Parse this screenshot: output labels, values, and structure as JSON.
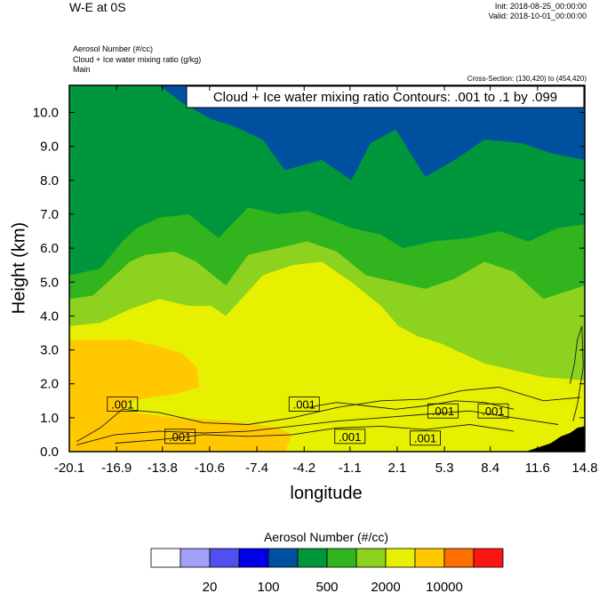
{
  "header": {
    "title": "W-E at 0S",
    "init": "Init: 2018-08-25_00:00:00",
    "valid": "Valid: 2018-10-01_00:00:00",
    "field1": "Aerosol Number   (#/cc)",
    "field2": "Cloud + Ice water mixing ratio   (g/kg)",
    "field3": "Main",
    "cross_section": "Cross-Section: (130,420) to (454,420)"
  },
  "chart_data": {
    "type": "heatmap",
    "title": "W-E at 0S",
    "xlabel": "longitude",
    "ylabel": "Height (km)",
    "xlim": [
      -20.1,
      14.8
    ],
    "ylim": [
      0.0,
      10.8
    ],
    "x_ticks": [
      "-20.1",
      "-16.9",
      "-13.8",
      "-10.6",
      "-7.4",
      "-4.2",
      "-1.1",
      "2.1",
      "5.3",
      "8.4",
      "11.6",
      "14.8"
    ],
    "y_ticks": [
      "0.0",
      "1.0",
      "2.0",
      "3.0",
      "4.0",
      "5.0",
      "6.0",
      "7.0",
      "8.0",
      "9.0",
      "10.0"
    ],
    "contour_legend": "Cloud + Ice water mixing ratio Contours: .001 to .1 by .099",
    "contour_labels": [
      {
        "text": ".001",
        "lon": -16.5,
        "h": 1.4
      },
      {
        "text": ".001",
        "lon": -12.6,
        "h": 0.45
      },
      {
        "text": ".001",
        "lon": -4.2,
        "h": 1.4
      },
      {
        "text": ".001",
        "lon": -1.1,
        "h": 0.45
      },
      {
        "text": ".001",
        "lon": 4.0,
        "h": 0.4
      },
      {
        "text": ".001",
        "lon": 5.2,
        "h": 1.2
      },
      {
        "text": ".001",
        "lon": 8.6,
        "h": 1.2
      }
    ],
    "colorbar": {
      "title": "Aerosol Number  (#/cc)",
      "colors": [
        "#ffffff",
        "#a0a0f8",
        "#5050f0",
        "#0000e8",
        "#0050a0",
        "#00963c",
        "#32b41e",
        "#8cd21e",
        "#e6f000",
        "#ffc800",
        "#ff6e00",
        "#ff1414"
      ],
      "labels": [
        "20",
        "100",
        "500",
        "2000",
        "10000"
      ]
    },
    "field_levels": [
      {
        "name": "layer-bottom-orange",
        "color": "#ffc800"
      },
      {
        "name": "layer-yellow",
        "color": "#e6f000"
      },
      {
        "name": "layer-light-green",
        "color": "#8cd21e"
      },
      {
        "name": "layer-green",
        "color": "#32b41e"
      },
      {
        "name": "layer-dark-green",
        "color": "#00963c"
      },
      {
        "name": "layer-navy",
        "color": "#0050a0"
      }
    ],
    "terrain_color": "#000000"
  }
}
